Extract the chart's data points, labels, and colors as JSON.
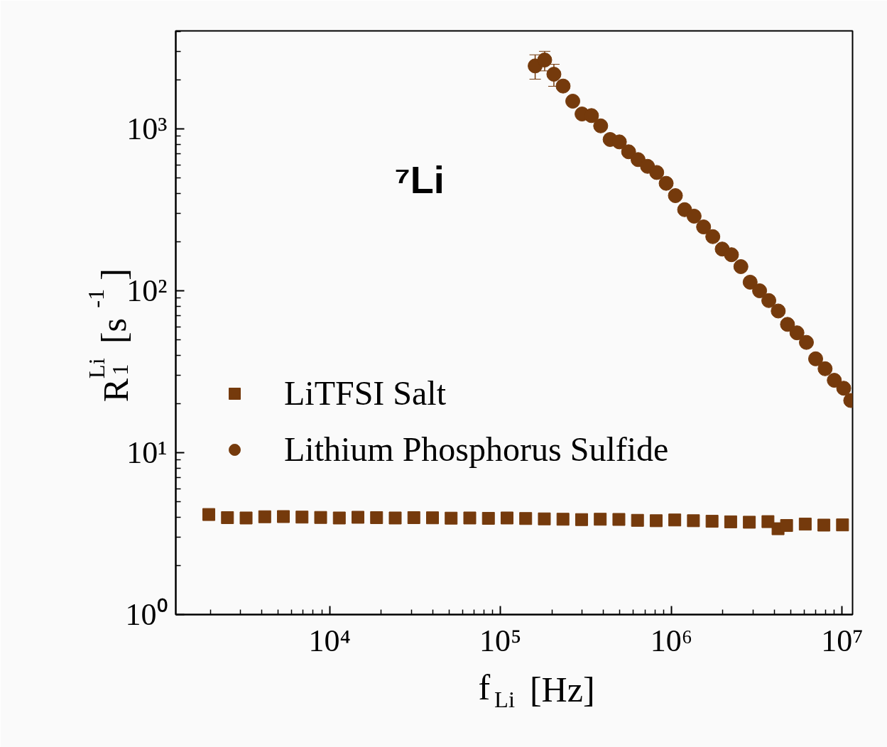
{
  "chart_data": {
    "type": "scatter",
    "xlabel": "f$_{Li}$ [Hz]",
    "ylabel": "R$_{1}$$^{Li}$ [s$^{-1}$]",
    "log": "xy",
    "xlim": [
      1256,
      11500000
    ],
    "ylim": [
      1,
      4030
    ],
    "xticks": [
      {
        "value": 10000,
        "label": "10⁴"
      },
      {
        "value": 100000,
        "label": "10⁵"
      },
      {
        "value": 1000000,
        "label": "10⁶"
      },
      {
        "value": 10000000,
        "label": "10⁷"
      }
    ],
    "yticks": [
      {
        "value": 1,
        "label": "10⁰"
      },
      {
        "value": 10,
        "label": "10¹"
      },
      {
        "value": 100,
        "label": "10²"
      },
      {
        "value": 1000,
        "label": "10³"
      }
    ],
    "grid": false,
    "legend": "left",
    "annotations": [
      "⁷Li"
    ],
    "series": [
      {
        "name": "LiTFSI Salt",
        "color": "#753a0c",
        "marker": "square",
        "x": [
          1961,
          2521,
          3241,
          4167,
          5357,
          6887,
          8854,
          11383,
          14634,
          18813,
          24186,
          31094,
          39975,
          51392,
          66069,
          84938,
          109195,
          140382,
          180470,
          232010,
          298270,
          383460,
          492970,
          633770,
          814770,
          1047100,
          1346100,
          1730600,
          2224900,
          2860300,
          3677000,
          4212000,
          4727000,
          6077000,
          7813000,
          10044000
        ],
        "values": [
          4.15,
          3.97,
          3.95,
          4.02,
          4.03,
          4.0,
          3.98,
          3.95,
          3.99,
          3.97,
          3.95,
          3.97,
          3.96,
          3.94,
          3.95,
          3.93,
          3.95,
          3.92,
          3.9,
          3.88,
          3.86,
          3.88,
          3.87,
          3.82,
          3.8,
          3.84,
          3.8,
          3.77,
          3.74,
          3.72,
          3.75,
          3.39,
          3.55,
          3.62,
          3.57,
          3.58
        ]
      },
      {
        "name": "Lithium Phosphorus Sulfide",
        "color": "#753a0c",
        "marker": "circle",
        "x": [
          159500,
          181300,
          205300,
          232500,
          264800,
          300000,
          340700,
          385700,
          438100,
          496200,
          562100,
          638500,
          725300,
          820800,
          932400,
          1056000,
          1196000,
          1359000,
          1544000,
          1748000,
          1985000,
          2248000,
          2553000,
          2892000,
          3285000,
          3719000,
          4224000,
          4785000,
          5435000,
          6173000,
          6992000,
          7943000,
          8990000,
          10210000,
          11220000
        ],
        "values": [
          2449,
          2664,
          2176,
          1839,
          1483,
          1236,
          1208,
          1044,
          860,
          831,
          722,
          646,
          587,
          538,
          461,
          387,
          317,
          289,
          248,
          216,
          181,
          167,
          141,
          113,
          100,
          87,
          75,
          62,
          55,
          48,
          38,
          33,
          28,
          25,
          21
        ],
        "errors": [
          [
            2028,
            2868
          ],
          [
            2282,
            3013
          ],
          [
            1833,
            2506
          ],
          null,
          null,
          null,
          null,
          null,
          null,
          null,
          null,
          null,
          null,
          null,
          null,
          null,
          null,
          null,
          null,
          null,
          null,
          null,
          null,
          null,
          null,
          null,
          null,
          null,
          null,
          null,
          null,
          null,
          null,
          null,
          null
        ]
      }
    ]
  }
}
